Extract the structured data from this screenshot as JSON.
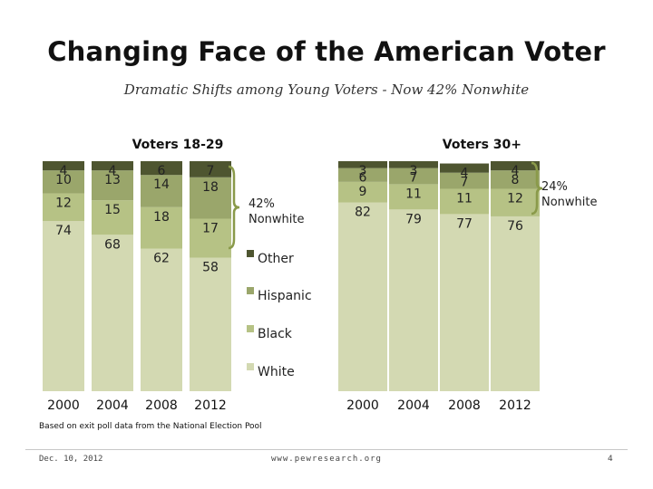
{
  "title": "Changing Face of the American Voter",
  "subtitle": "Dramatic Shifts among Young Voters - Now 42% Nonwhite",
  "colors": {
    "White": "#d3d9b2",
    "Black": "#b6c285",
    "Hispanic": "#9aa66b",
    "Other": "#4e5530",
    "bracket": "#8a9a4a"
  },
  "chart_data": [
    {
      "type": "bar",
      "stacked": true,
      "title": "Voters 18-29",
      "categories": [
        "2000",
        "2004",
        "2008",
        "2012"
      ],
      "series": [
        {
          "name": "White",
          "values": [
            74,
            68,
            62,
            58
          ]
        },
        {
          "name": "Black",
          "values": [
            12,
            15,
            18,
            17
          ]
        },
        {
          "name": "Hispanic",
          "values": [
            10,
            13,
            14,
            18
          ]
        },
        {
          "name": "Other",
          "values": [
            4,
            4,
            6,
            7
          ]
        }
      ],
      "annotation": "42% Nonwhite",
      "ylim": [
        0,
        100
      ],
      "grid": false
    },
    {
      "type": "bar",
      "stacked": true,
      "title": "Voters 30+",
      "categories": [
        "2000",
        "2004",
        "2008",
        "2012"
      ],
      "series": [
        {
          "name": "White",
          "values": [
            82,
            79,
            77,
            76
          ]
        },
        {
          "name": "Black",
          "values": [
            9,
            11,
            11,
            12
          ]
        },
        {
          "name": "Hispanic",
          "values": [
            6,
            7,
            7,
            8
          ]
        },
        {
          "name": "Other",
          "values": [
            3,
            3,
            4,
            4
          ]
        }
      ],
      "annotation": "24% Nonwhite",
      "ylim": [
        0,
        100
      ],
      "grid": false
    }
  ],
  "legend": {
    "placement": "center",
    "items": [
      "Other",
      "Hispanic",
      "Black",
      "White"
    ]
  },
  "source": "Based on exit poll data from the National Election Pool",
  "footer": {
    "date": "Dec. 10, 2012",
    "url": "www.pewresearch.org",
    "page": "4"
  }
}
